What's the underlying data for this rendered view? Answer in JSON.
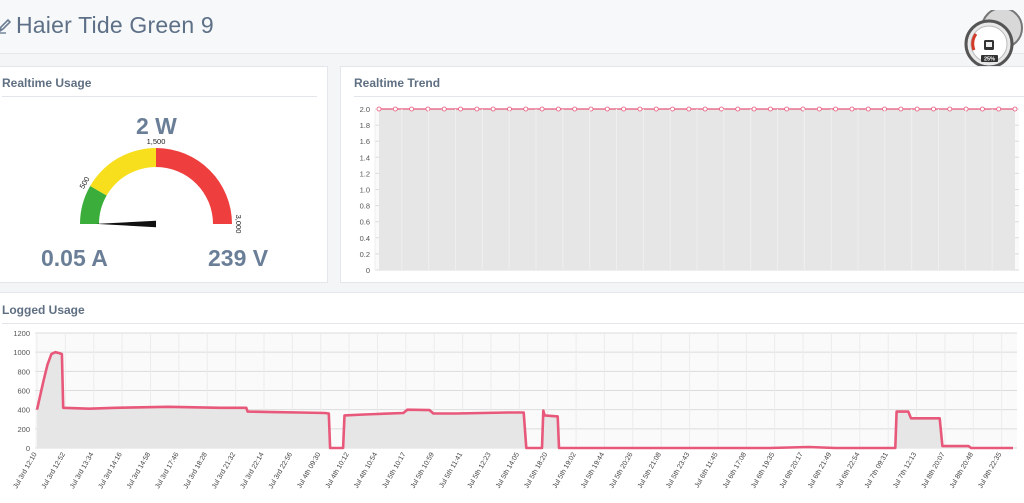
{
  "header": {
    "title": "Haier Tide Green 9",
    "edit_icon": "edit-pencil-icon",
    "logo": "speedometer-logo-icon",
    "logo_badge": "25%"
  },
  "realtime_usage": {
    "title": "Realtime Usage",
    "power": "2 W",
    "current": "0.05 A",
    "voltage": "239 V",
    "gauge": {
      "min": 0,
      "max": 3000,
      "value": 2,
      "bands": [
        {
          "from": 0,
          "to": 500,
          "color": "#3aad3a"
        },
        {
          "from": 500,
          "to": 1500,
          "color": "#f7df1e"
        },
        {
          "from": 1500,
          "to": 3000,
          "color": "#ee3e3e"
        }
      ],
      "tick_labels": [
        "500",
        "1,500",
        "3,000"
      ]
    }
  },
  "realtime_trend": {
    "title": "Realtime Trend",
    "chart_data": {
      "type": "line",
      "ylim": [
        0,
        2.0
      ],
      "yticks": [
        "0",
        "0.2",
        "0.4",
        "0.6",
        "0.8",
        "1.0",
        "1.2",
        "1.4",
        "1.6",
        "1.8",
        "2.0"
      ],
      "series": [
        {
          "values": [
            2,
            2,
            2,
            2,
            2,
            2,
            2,
            2,
            2,
            2,
            2,
            2,
            2,
            2,
            2,
            2,
            2,
            2,
            2,
            2,
            2,
            2,
            2,
            2,
            2,
            2,
            2,
            2,
            2,
            2,
            2,
            2,
            2,
            2,
            2,
            2,
            2,
            2,
            2,
            2
          ],
          "color": "#e8587a"
        }
      ],
      "grid": true,
      "fill": "#e6e6e6"
    }
  },
  "logged_usage": {
    "title": "Logged Usage",
    "chart_data": {
      "type": "area",
      "ylim": [
        0,
        1200
      ],
      "yticks": [
        "0",
        "200",
        "400",
        "600",
        "800",
        "1000",
        "1200"
      ],
      "categories": [
        "Jul 3rd 12:10",
        "Jul 3rd 12:52",
        "Jul 3rd 13:34",
        "Jul 3rd 14:16",
        "Jul 3rd 14:58",
        "Jul 3rd 17:46",
        "Jul 3rd 18:28",
        "Jul 3rd 21:32",
        "Jul 3rd 22:14",
        "Jul 3rd 22:56",
        "Jul 4th 09:30",
        "Jul 4th 10:12",
        "Jul 4th 10:54",
        "Jul 5th 10:17",
        "Jul 5th 10:59",
        "Jul 5th 11:41",
        "Jul 5th 12:23",
        "Jul 5th 14:05",
        "Jul 5th 18:20",
        "Jul 5th 19:02",
        "Jul 5th 19:44",
        "Jul 5th 20:26",
        "Jul 5th 21:08",
        "Jul 5th 23:43",
        "Jul 6th 11:45",
        "Jul 6th 17:08",
        "Jul 6th 19:35",
        "Jul 6th 20:17",
        "Jul 6th 21:49",
        "Jul 6th 22:54",
        "Jul 7th 09:31",
        "Jul 7th 12:13",
        "Jul 8th 20:07",
        "Jul 8th 20:48",
        "Jul 9th 22:35"
      ],
      "series": [
        {
          "color": "#e8587a",
          "points": [
            [
              0,
              400
            ],
            [
              0.1,
              520
            ],
            [
              0.25,
              700
            ],
            [
              0.4,
              870
            ],
            [
              0.55,
              980
            ],
            [
              0.7,
              1000
            ],
            [
              0.85,
              990
            ],
            [
              0.95,
              980
            ],
            [
              1.0,
              420
            ],
            [
              2,
              410
            ],
            [
              3,
              420
            ],
            [
              4,
              425
            ],
            [
              5,
              430
            ],
            [
              6,
              425
            ],
            [
              7,
              420
            ],
            [
              8,
              420
            ],
            [
              8.05,
              380
            ],
            [
              9,
              375
            ],
            [
              10,
              370
            ],
            [
              11,
              365
            ],
            [
              11.15,
              360
            ],
            [
              11.2,
              0
            ],
            [
              11.7,
              0
            ],
            [
              11.75,
              340
            ],
            [
              12.5,
              350
            ],
            [
              13,
              355
            ],
            [
              14,
              365
            ],
            [
              14.15,
              400
            ],
            [
              15,
              395
            ],
            [
              15.15,
              360
            ],
            [
              16,
              360
            ],
            [
              17,
              365
            ],
            [
              18,
              370
            ],
            [
              18.6,
              370
            ],
            [
              18.7,
              0
            ],
            [
              19.3,
              0
            ],
            [
              19.35,
              390
            ],
            [
              19.4,
              340
            ],
            [
              19.9,
              330
            ],
            [
              19.95,
              0
            ],
            [
              22,
              0
            ],
            [
              25,
              0
            ],
            [
              28,
              0
            ],
            [
              29.5,
              10
            ],
            [
              30.5,
              0
            ],
            [
              32.8,
              0
            ],
            [
              32.85,
              380
            ],
            [
              33.3,
              380
            ],
            [
              33.4,
              310
            ],
            [
              34.5,
              310
            ],
            [
              34.6,
              20
            ],
            [
              35.6,
              20
            ],
            [
              35.7,
              0
            ],
            [
              37.3,
              0
            ]
          ]
        }
      ],
      "grid": true,
      "fill": "#e6e6e6"
    }
  }
}
